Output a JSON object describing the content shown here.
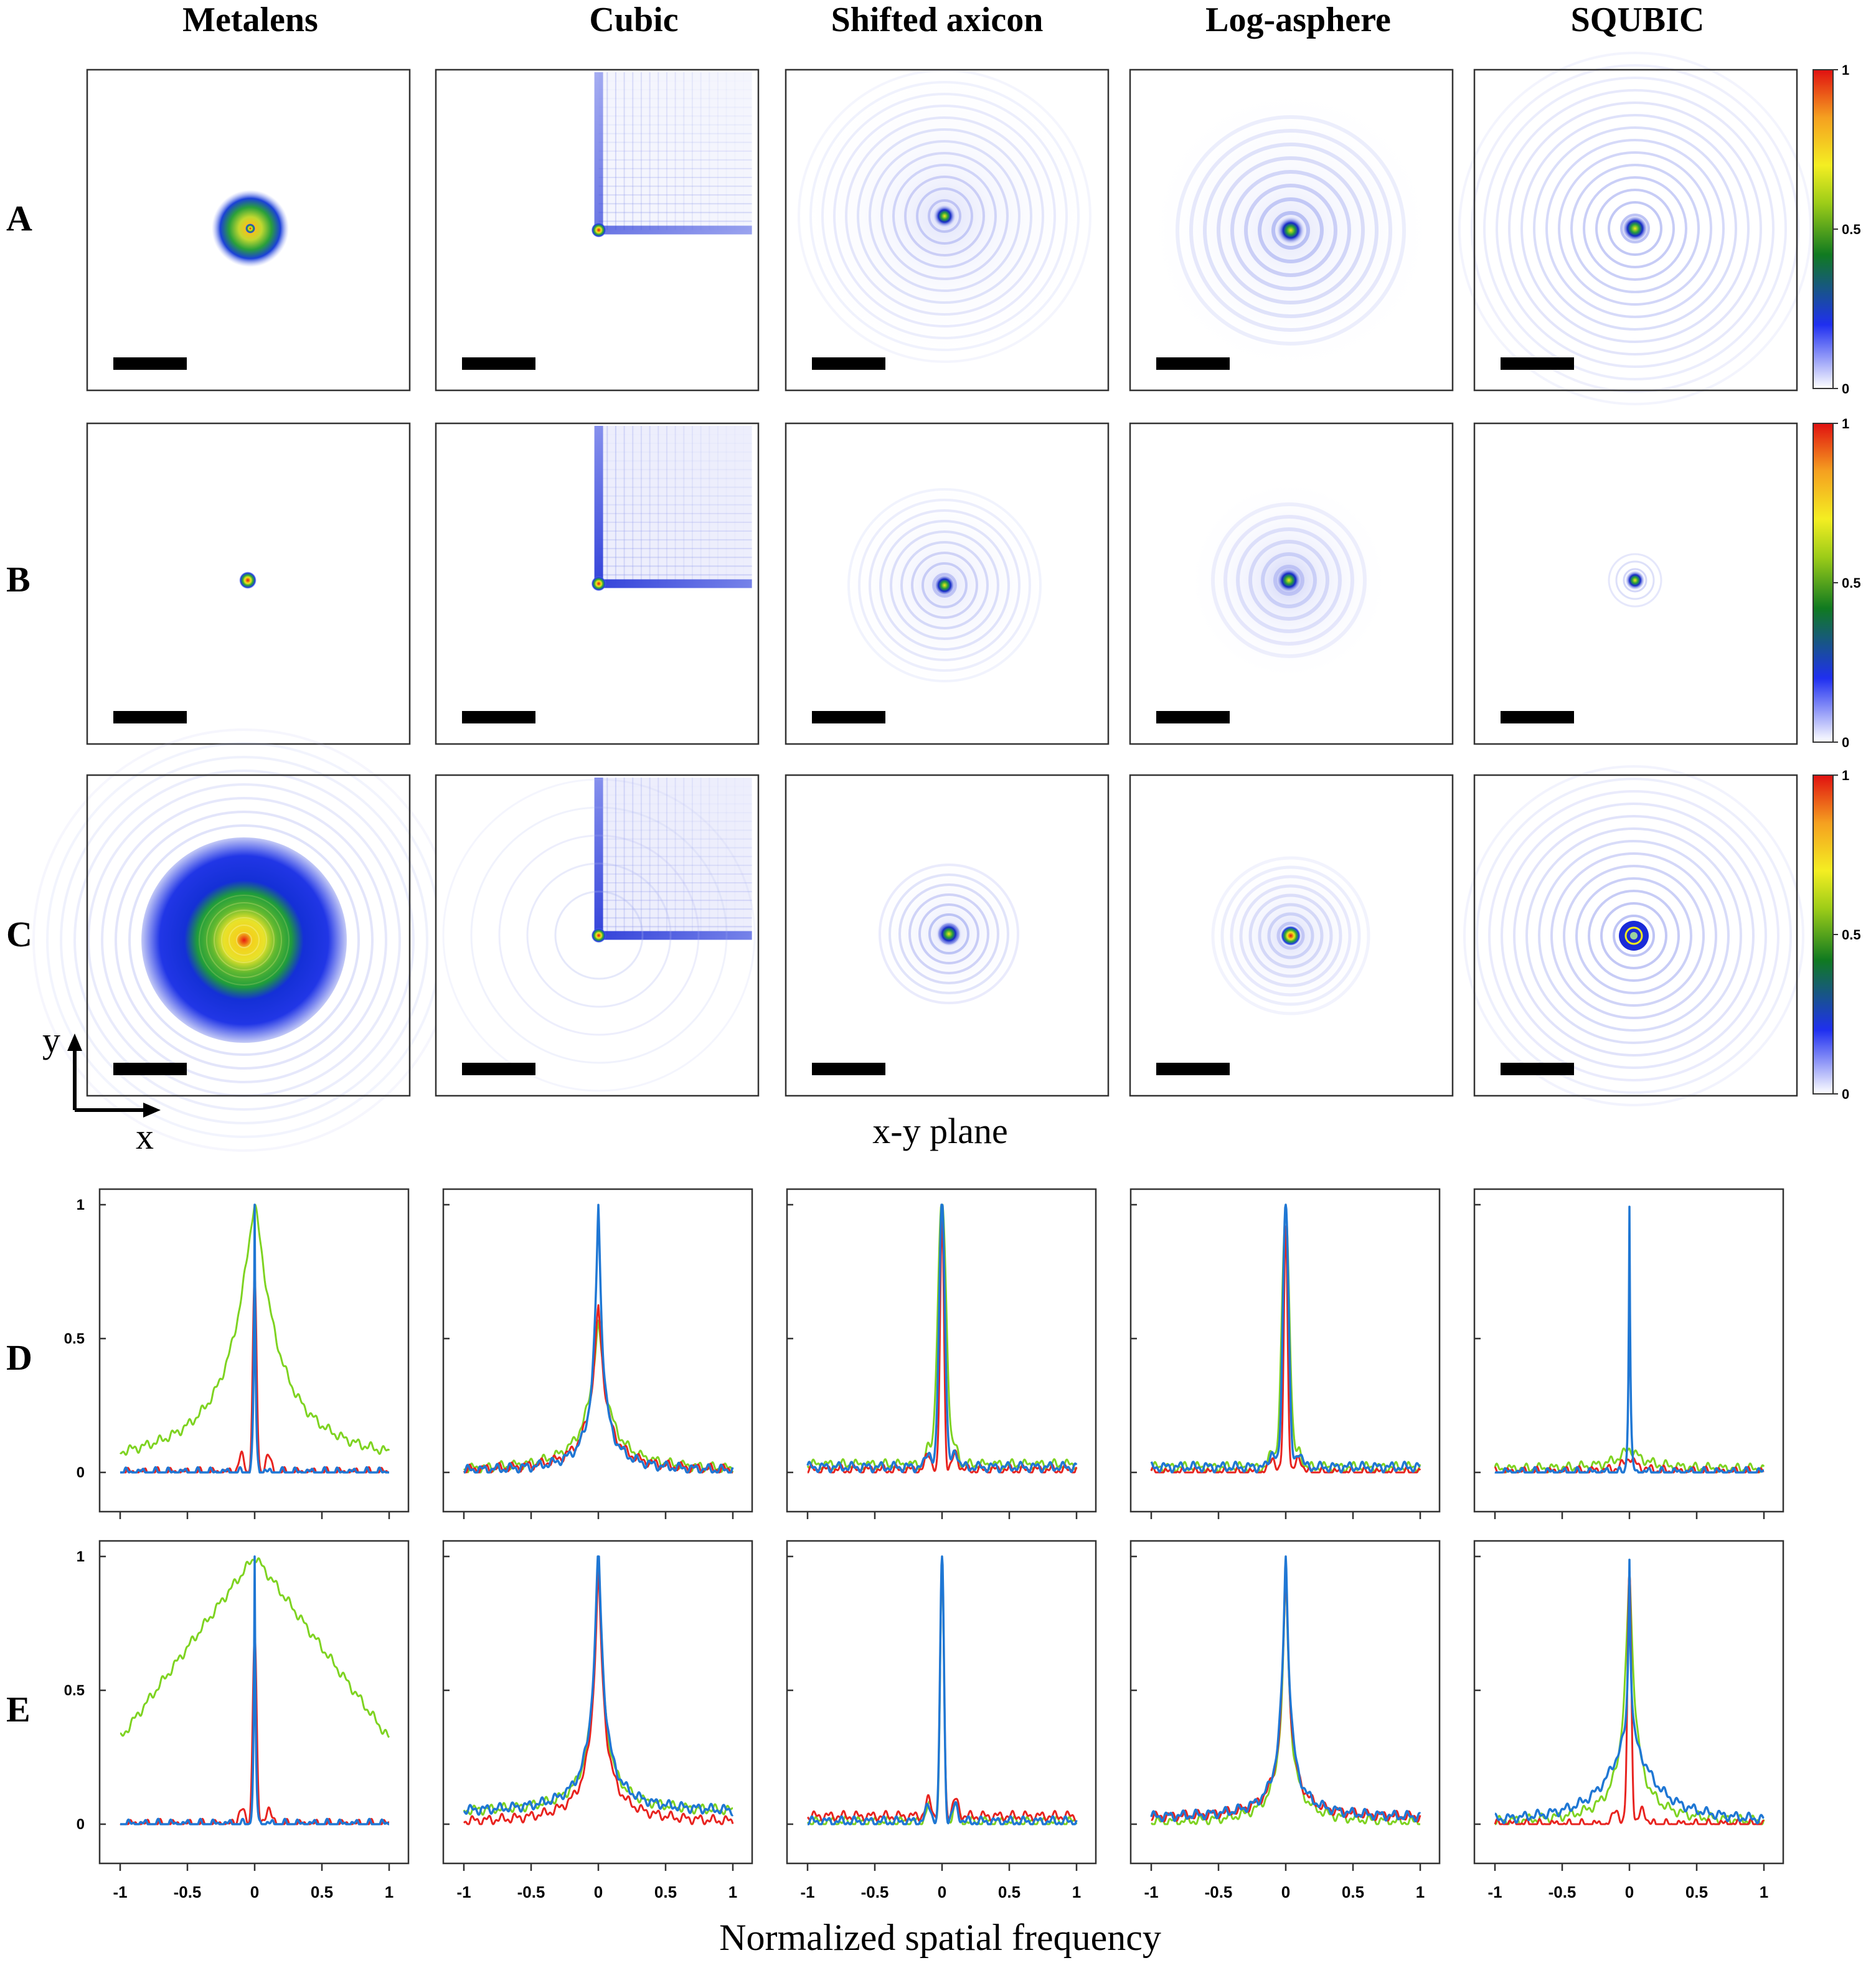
{
  "figure": {
    "columns": [
      "Metalens",
      "Cubic",
      "Shifted axicon",
      "Log-asphere",
      "SQUBIC"
    ],
    "rows": [
      "A",
      "B",
      "C",
      "D",
      "E"
    ],
    "psf_plane_label": "x-y plane",
    "axis_indicator": {
      "x": "x",
      "y": "y"
    },
    "colorbar": {
      "ticks": [
        "1",
        "0.5",
        "0"
      ],
      "range": [
        0,
        1
      ],
      "colormap": "white-blue-green-yellow-red"
    },
    "colors": {
      "red": "#e8231f",
      "green": "#7ed321",
      "blue": "#1f77d4",
      "frame": "#333333",
      "scale_bar": "#000000"
    }
  },
  "chart_data": {
    "type": "line",
    "xlabel": "Normalized spatial frequency",
    "xlim": [
      -1,
      1
    ],
    "ylim": [
      0,
      1
    ],
    "x_ticks": [
      "-1",
      "-0.5",
      "0",
      "0.5",
      "1"
    ],
    "y_ticks": [
      "1",
      "0.5",
      "0"
    ],
    "panels": [
      {
        "row": "D",
        "column": "Metalens",
        "curves": {
          "green": {
            "peak": 1.0,
            "shape": "lorentz",
            "width": 0.16,
            "base": 0.0
          },
          "red": {
            "peak": 0.72,
            "shape": "narrow",
            "width": 0.02,
            "base": 0.0
          },
          "blue": {
            "peak": 1.0,
            "shape": "spike",
            "width": 0.008,
            "base": 0.0
          }
        }
      },
      {
        "row": "D",
        "column": "Cubic",
        "curves": {
          "green": {
            "peak": 0.55,
            "shape": "lorentz",
            "width": 0.07,
            "base": 0.0
          },
          "red": {
            "peak": 0.62,
            "shape": "lorentz",
            "width": 0.05,
            "base": 0.0
          },
          "blue": {
            "peak": 1.0,
            "shape": "lorentz",
            "width": 0.03,
            "base": 0.0
          }
        }
      },
      {
        "row": "D",
        "column": "Shifted axicon",
        "curves": {
          "green": {
            "peak": 0.98,
            "shape": "narrow",
            "width": 0.045,
            "base": 0.03
          },
          "red": {
            "peak": 0.95,
            "shape": "narrow",
            "width": 0.02,
            "base": 0.01
          },
          "blue": {
            "peak": 1.0,
            "shape": "narrow",
            "width": 0.03,
            "base": 0.02
          }
        }
      },
      {
        "row": "D",
        "column": "Log-asphere",
        "curves": {
          "green": {
            "peak": 0.95,
            "shape": "narrow",
            "width": 0.04,
            "base": 0.02
          },
          "red": {
            "peak": 0.92,
            "shape": "narrow",
            "width": 0.02,
            "base": 0.0
          },
          "blue": {
            "peak": 1.0,
            "shape": "narrow",
            "width": 0.03,
            "base": 0.02
          }
        }
      },
      {
        "row": "D",
        "column": "SQUBIC",
        "curves": {
          "green": {
            "peak": 0.08,
            "shape": "lorentz",
            "width": 0.1,
            "base": 0.01
          },
          "red": {
            "peak": 0.06,
            "shape": "lorentz",
            "width": 0.05,
            "base": 0.0
          },
          "blue": {
            "peak": 1.0,
            "shape": "spike",
            "width": 0.008,
            "base": 0.0
          }
        }
      },
      {
        "row": "E",
        "column": "Metalens",
        "curves": {
          "green": {
            "peak": 1.0,
            "shape": "triangle",
            "width": 1.0,
            "base": 0.0
          },
          "red": {
            "peak": 0.72,
            "shape": "narrow",
            "width": 0.02,
            "base": 0.0
          },
          "blue": {
            "peak": 1.0,
            "shape": "spike",
            "width": 0.008,
            "base": 0.0
          }
        }
      },
      {
        "row": "E",
        "column": "Cubic",
        "curves": {
          "green": {
            "peak": 0.95,
            "shape": "lorentz",
            "width": 0.04,
            "base": 0.04
          },
          "red": {
            "peak": 0.95,
            "shape": "lorentz",
            "width": 0.04,
            "base": 0.0
          },
          "blue": {
            "peak": 1.0,
            "shape": "lorentz",
            "width": 0.04,
            "base": 0.04
          }
        }
      },
      {
        "row": "E",
        "column": "Shifted axicon",
        "curves": {
          "green": {
            "peak": 0.95,
            "shape": "narrow",
            "width": 0.02,
            "base": 0.01
          },
          "red": {
            "peak": 0.95,
            "shape": "narrow",
            "width": 0.02,
            "base": 0.03
          },
          "blue": {
            "peak": 1.0,
            "shape": "narrow",
            "width": 0.02,
            "base": 0.01
          }
        }
      },
      {
        "row": "E",
        "column": "Log-asphere",
        "curves": {
          "green": {
            "peak": 0.95,
            "shape": "lorentz",
            "width": 0.03,
            "base": 0.0
          },
          "red": {
            "peak": 0.95,
            "shape": "lorentz",
            "width": 0.03,
            "base": 0.02
          },
          "blue": {
            "peak": 1.0,
            "shape": "lorentz",
            "width": 0.03,
            "base": 0.02
          }
        }
      },
      {
        "row": "E",
        "column": "SQUBIC",
        "curves": {
          "green": {
            "peak": 0.95,
            "shape": "lorentz",
            "width": 0.04,
            "base": 0.0
          },
          "red": {
            "peak": 0.95,
            "shape": "narrow",
            "width": 0.02,
            "base": 0.0
          },
          "blue": {
            "peak": 1.0,
            "shape": "broad-lorentz",
            "width": 0.17,
            "base": 0.0
          }
        }
      }
    ]
  }
}
